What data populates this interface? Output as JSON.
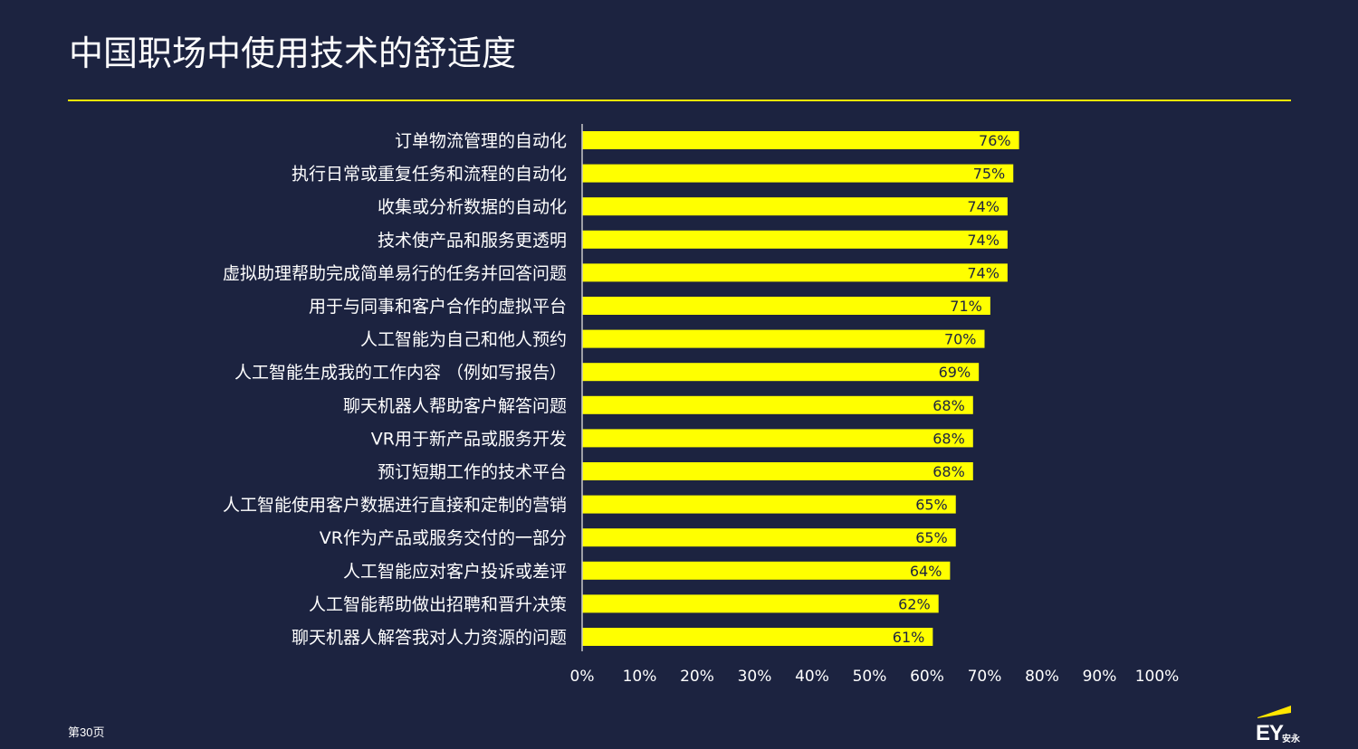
{
  "title": "中国职场中使用技术的舒适度",
  "page_label": "第30页",
  "logo": {
    "text": "EY",
    "subtext": "安永"
  },
  "colors": {
    "background": "#1c2340",
    "bar": "#ffff00",
    "accent": "#ffe600",
    "text": "#ffffff"
  },
  "chart_data": {
    "type": "bar",
    "orientation": "horizontal",
    "categories": [
      "订单物流管理的自动化",
      "执行日常或重复任务和流程的自动化",
      "收集或分析数据的自动化",
      "技术使产品和服务更透明",
      "虚拟助理帮助完成简单易行的任务并回答问题",
      "用于与同事和客户合作的虚拟平台",
      "人工智能为自己和他人预约",
      "人工智能生成我的工作内容 （例如写报告）",
      "聊天机器人帮助客户解答问题",
      "VR用于新产品或服务开发",
      "预订短期工作的技术平台",
      "人工智能使用客户数据进行直接和定制的营销",
      "VR作为产品或服务交付的一部分",
      "人工智能应对客户投诉或差评",
      "人工智能帮助做出招聘和晋升决策",
      "聊天机器人解答我对人力资源的问题"
    ],
    "values": [
      76,
      75,
      74,
      74,
      74,
      71,
      70,
      69,
      68,
      68,
      68,
      65,
      65,
      64,
      62,
      61
    ],
    "data_labels": [
      "76%",
      "75%",
      "74%",
      "74%",
      "74%",
      "71%",
      "70%",
      "69%",
      "68%",
      "68%",
      "68%",
      "65%",
      "65%",
      "64%",
      "62%",
      "61%"
    ],
    "xlim": [
      0,
      100
    ],
    "x_ticks": [
      "0%",
      "10%",
      "20%",
      "30%",
      "40%",
      "50%",
      "60%",
      "70%",
      "80%",
      "90%",
      "100%"
    ],
    "grid": false,
    "legend": "none"
  }
}
